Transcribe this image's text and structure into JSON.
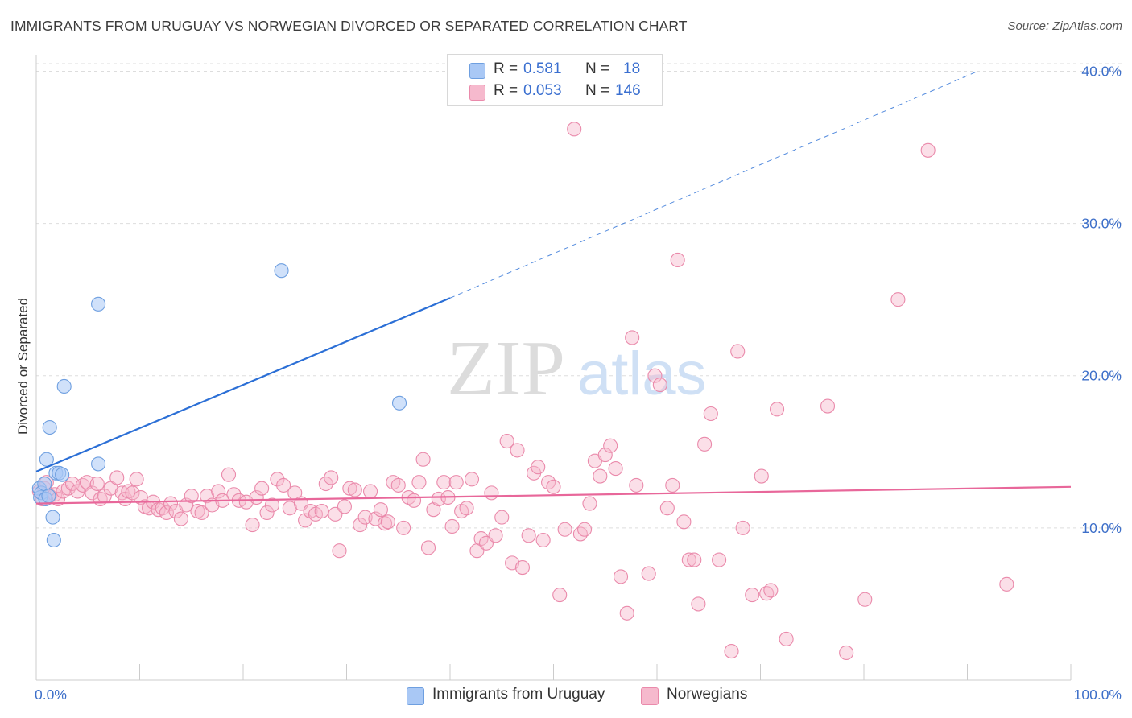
{
  "title": "IMMIGRANTS FROM URUGUAY VS NORWEGIAN DIVORCED OR SEPARATED CORRELATION CHART",
  "source": "Source: ZipAtlas.com",
  "watermark": {
    "zip": "ZIP",
    "atlas": "atlas"
  },
  "colors": {
    "blue_fill": "#a9c8f5",
    "blue_stroke": "#6e9fe0",
    "blue_line": "#2b6fd6",
    "pink_fill": "#f6b9cd",
    "pink_stroke": "#ea8aab",
    "pink_line": "#e8679a",
    "axis_label": "#3d6fc9",
    "grid": "#dddddd"
  },
  "legend_top": {
    "rows": [
      {
        "r_label": "R =",
        "r_value": "0.581",
        "n_label": "N =",
        "n_value": "18"
      },
      {
        "r_label": "R =",
        "r_value": "0.053",
        "n_label": "N =",
        "n_value": "146"
      }
    ]
  },
  "legend_bottom": {
    "items": [
      {
        "label": "Immigrants from Uruguay"
      },
      {
        "label": "Norwegians"
      }
    ]
  },
  "chart_data": {
    "type": "scatter",
    "title": "IMMIGRANTS FROM URUGUAY VS NORWEGIAN DIVORCED OR SEPARATED CORRELATION CHART",
    "xlabel": "",
    "ylabel": "Divorced or Separated",
    "xlim": [
      0,
      100
    ],
    "ylim": [
      0,
      40.5
    ],
    "x_tick_labels": [
      "0.0%",
      "100.0%"
    ],
    "y_ticks": [
      10,
      20,
      30,
      40
    ],
    "y_tick_labels": [
      "10.0%",
      "20.0%",
      "30.0%",
      "40.0%"
    ],
    "grid": true,
    "legend_position": "top-center",
    "series": [
      {
        "name": "Immigrants from Uruguay",
        "color": "#a9c8f5",
        "r": 0.581,
        "n": 18,
        "trend": {
          "x0": 0,
          "y0": 13.7,
          "x1": 40,
          "y1": 25.1,
          "dashed_to_x": 91,
          "dashed_to_y": 40.0
        },
        "points": [
          [
            0.3,
            12.6
          ],
          [
            0.4,
            12.0
          ],
          [
            0.5,
            12.3
          ],
          [
            0.8,
            12.9
          ],
          [
            0.9,
            11.9
          ],
          [
            1.0,
            14.5
          ],
          [
            1.3,
            16.6
          ],
          [
            1.6,
            10.7
          ],
          [
            1.7,
            9.2
          ],
          [
            1.9,
            13.6
          ],
          [
            2.2,
            13.6
          ],
          [
            2.5,
            13.5
          ],
          [
            2.7,
            19.3
          ],
          [
            6.0,
            14.2
          ],
          [
            6.0,
            24.7
          ],
          [
            23.7,
            26.9
          ],
          [
            35.1,
            18.2
          ],
          [
            1.2,
            12.1
          ]
        ]
      },
      {
        "name": "Norwegians",
        "color": "#f6b9cd",
        "r": 0.053,
        "n": 146,
        "trend": {
          "x0": 0,
          "y0": 11.6,
          "x1": 100,
          "y1": 12.7
        },
        "points": [
          [
            0.3,
            12.4
          ],
          [
            0.6,
            11.9
          ],
          [
            0.8,
            12.6
          ],
          [
            1.0,
            13.0
          ],
          [
            1.3,
            12.1
          ],
          [
            1.8,
            12.2
          ],
          [
            2.1,
            11.9
          ],
          [
            2.6,
            12.4
          ],
          [
            3.1,
            12.6
          ],
          [
            3.5,
            12.9
          ],
          [
            4.0,
            12.4
          ],
          [
            4.5,
            12.8
          ],
          [
            4.9,
            13.0
          ],
          [
            5.4,
            12.3
          ],
          [
            5.9,
            12.9
          ],
          [
            6.2,
            11.9
          ],
          [
            6.6,
            12.1
          ],
          [
            7.2,
            12.6
          ],
          [
            7.8,
            13.3
          ],
          [
            8.3,
            12.3
          ],
          [
            8.6,
            11.9
          ],
          [
            8.9,
            12.4
          ],
          [
            9.3,
            12.3
          ],
          [
            9.7,
            13.2
          ],
          [
            10.1,
            12.0
          ],
          [
            10.5,
            11.4
          ],
          [
            10.9,
            11.3
          ],
          [
            11.3,
            11.7
          ],
          [
            11.8,
            11.2
          ],
          [
            12.2,
            11.3
          ],
          [
            12.6,
            11.0
          ],
          [
            13.0,
            11.6
          ],
          [
            13.5,
            11.1
          ],
          [
            14.0,
            10.6
          ],
          [
            14.5,
            11.5
          ],
          [
            15.0,
            12.1
          ],
          [
            15.6,
            11.1
          ],
          [
            16.0,
            11.0
          ],
          [
            16.5,
            12.1
          ],
          [
            17.0,
            11.5
          ],
          [
            17.6,
            12.4
          ],
          [
            18.0,
            11.8
          ],
          [
            18.6,
            13.5
          ],
          [
            19.1,
            12.2
          ],
          [
            19.6,
            11.8
          ],
          [
            20.3,
            11.7
          ],
          [
            20.9,
            10.2
          ],
          [
            21.3,
            12.0
          ],
          [
            21.8,
            12.6
          ],
          [
            22.3,
            11.0
          ],
          [
            22.8,
            11.5
          ],
          [
            23.3,
            13.2
          ],
          [
            23.9,
            12.8
          ],
          [
            24.5,
            11.3
          ],
          [
            25.0,
            12.3
          ],
          [
            25.6,
            11.6
          ],
          [
            26.0,
            10.5
          ],
          [
            26.5,
            11.1
          ],
          [
            27.0,
            10.9
          ],
          [
            27.6,
            11.1
          ],
          [
            28.0,
            12.9
          ],
          [
            28.5,
            13.3
          ],
          [
            28.9,
            10.9
          ],
          [
            29.3,
            8.5
          ],
          [
            29.8,
            11.4
          ],
          [
            30.3,
            12.6
          ],
          [
            30.8,
            12.5
          ],
          [
            31.3,
            10.2
          ],
          [
            31.8,
            10.7
          ],
          [
            32.3,
            12.4
          ],
          [
            32.8,
            10.6
          ],
          [
            33.3,
            11.2
          ],
          [
            33.7,
            10.3
          ],
          [
            34.0,
            10.4
          ],
          [
            34.5,
            13.0
          ],
          [
            35.0,
            12.8
          ],
          [
            35.5,
            10.0
          ],
          [
            36.0,
            12.0
          ],
          [
            36.5,
            11.8
          ],
          [
            37.0,
            13.0
          ],
          [
            37.4,
            14.5
          ],
          [
            37.9,
            8.7
          ],
          [
            38.4,
            11.2
          ],
          [
            38.9,
            11.9
          ],
          [
            39.4,
            13.0
          ],
          [
            39.8,
            12.0
          ],
          [
            40.2,
            10.1
          ],
          [
            40.6,
            13.0
          ],
          [
            41.1,
            11.1
          ],
          [
            41.6,
            11.3
          ],
          [
            42.1,
            13.2
          ],
          [
            42.6,
            8.5
          ],
          [
            43.0,
            9.3
          ],
          [
            43.5,
            9.0
          ],
          [
            44.0,
            12.3
          ],
          [
            44.4,
            9.5
          ],
          [
            45.0,
            10.7
          ],
          [
            45.5,
            15.7
          ],
          [
            46.0,
            7.7
          ],
          [
            46.5,
            15.1
          ],
          [
            47.0,
            7.4
          ],
          [
            47.6,
            9.5
          ],
          [
            48.1,
            13.6
          ],
          [
            48.5,
            14.0
          ],
          [
            49.0,
            9.2
          ],
          [
            49.5,
            13.0
          ],
          [
            50.0,
            12.7
          ],
          [
            50.6,
            5.6
          ],
          [
            51.1,
            9.9
          ],
          [
            52.0,
            36.2
          ],
          [
            52.6,
            9.6
          ],
          [
            53.0,
            9.9
          ],
          [
            53.5,
            11.6
          ],
          [
            54.0,
            14.4
          ],
          [
            54.5,
            13.4
          ],
          [
            55.0,
            14.8
          ],
          [
            55.5,
            15.4
          ],
          [
            56.0,
            13.9
          ],
          [
            56.5,
            6.8
          ],
          [
            57.1,
            4.4
          ],
          [
            57.6,
            22.5
          ],
          [
            58.0,
            12.8
          ],
          [
            59.2,
            7.0
          ],
          [
            59.8,
            20.0
          ],
          [
            60.3,
            19.4
          ],
          [
            61.0,
            11.3
          ],
          [
            61.5,
            12.8
          ],
          [
            62.0,
            27.6
          ],
          [
            62.6,
            10.4
          ],
          [
            63.1,
            7.9
          ],
          [
            63.6,
            7.9
          ],
          [
            64.0,
            5.0
          ],
          [
            64.6,
            15.5
          ],
          [
            65.2,
            17.5
          ],
          [
            66.0,
            7.9
          ],
          [
            67.2,
            1.9
          ],
          [
            67.8,
            21.6
          ],
          [
            68.3,
            10.0
          ],
          [
            69.2,
            5.6
          ],
          [
            70.1,
            13.4
          ],
          [
            70.6,
            5.7
          ],
          [
            71.0,
            5.9
          ],
          [
            71.6,
            17.8
          ],
          [
            72.5,
            2.7
          ],
          [
            76.5,
            18.0
          ],
          [
            78.3,
            1.8
          ],
          [
            80.1,
            5.3
          ],
          [
            83.3,
            25.0
          ],
          [
            86.2,
            34.8
          ],
          [
            93.8,
            6.3
          ]
        ]
      }
    ]
  }
}
